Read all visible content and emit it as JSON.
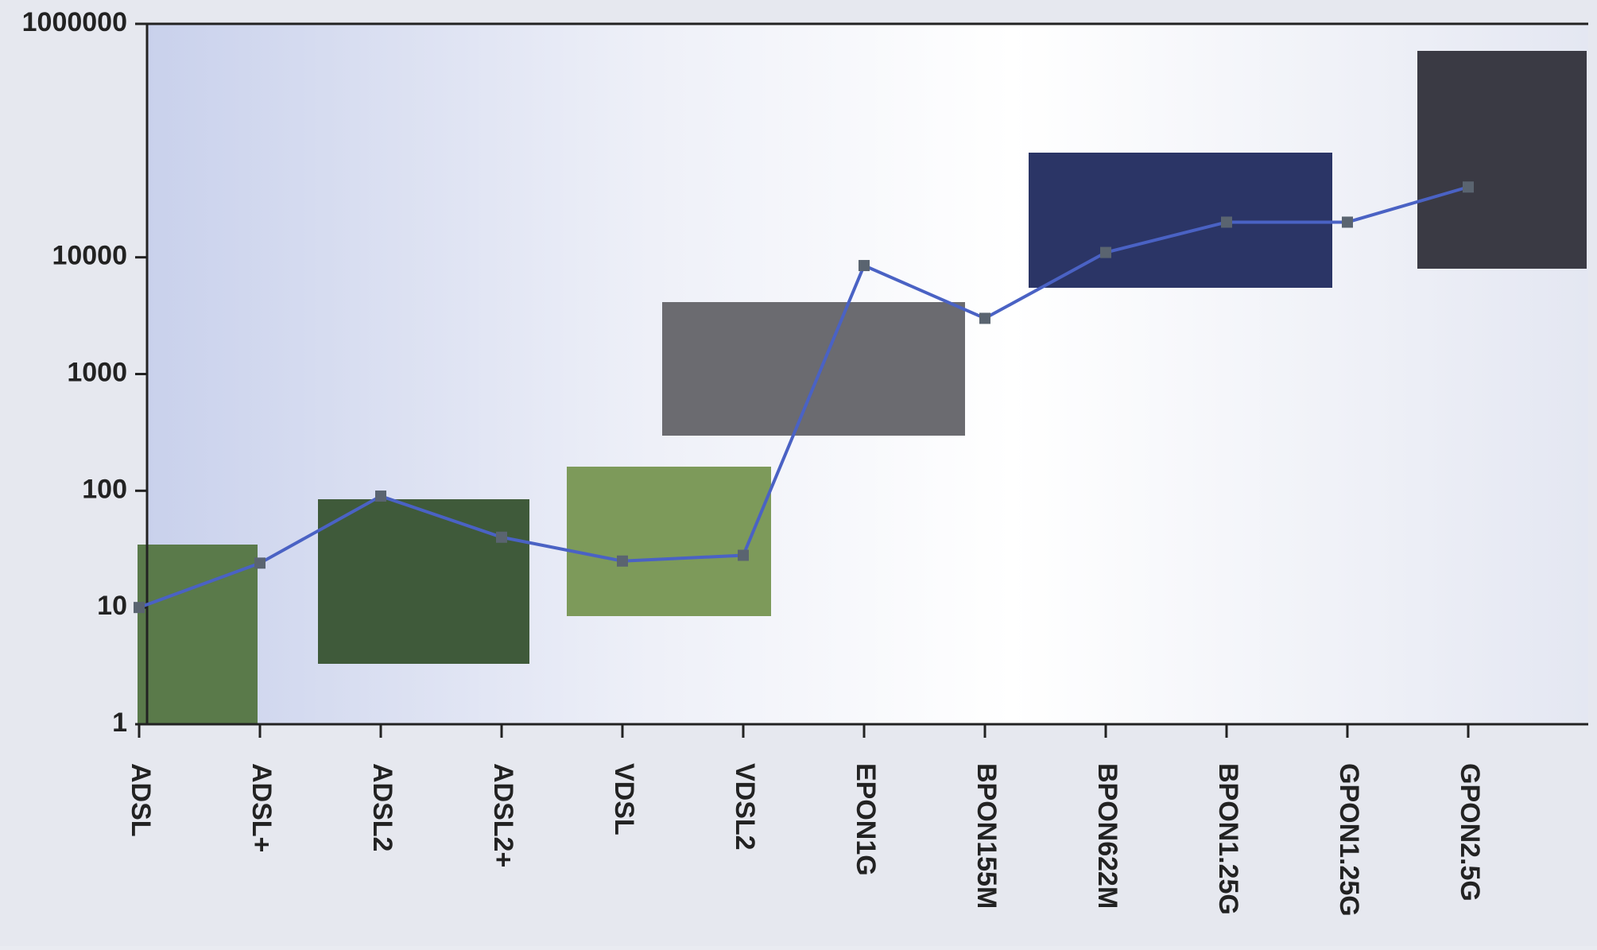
{
  "chart_data": {
    "type": "line",
    "categories": [
      "ADSL",
      "ADSL+",
      "ADSL2",
      "ADSL2+",
      "VDSL",
      "VDSL2",
      "EPON1G",
      "BPON155M",
      "BPON622M",
      "BPON1.25G",
      "GPON1.25G",
      "GPON2.5G"
    ],
    "series": [
      {
        "color": "#4a62c4",
        "values": [
          10,
          24,
          90,
          40,
          25,
          28,
          8500,
          3000,
          11000,
          20000,
          20000,
          40000
        ]
      }
    ],
    "ylim": [
      1,
      1000000
    ],
    "yticks": [
      1,
      10,
      100,
      1000,
      10000,
      1000000
    ],
    "log_scale": true
  }
}
